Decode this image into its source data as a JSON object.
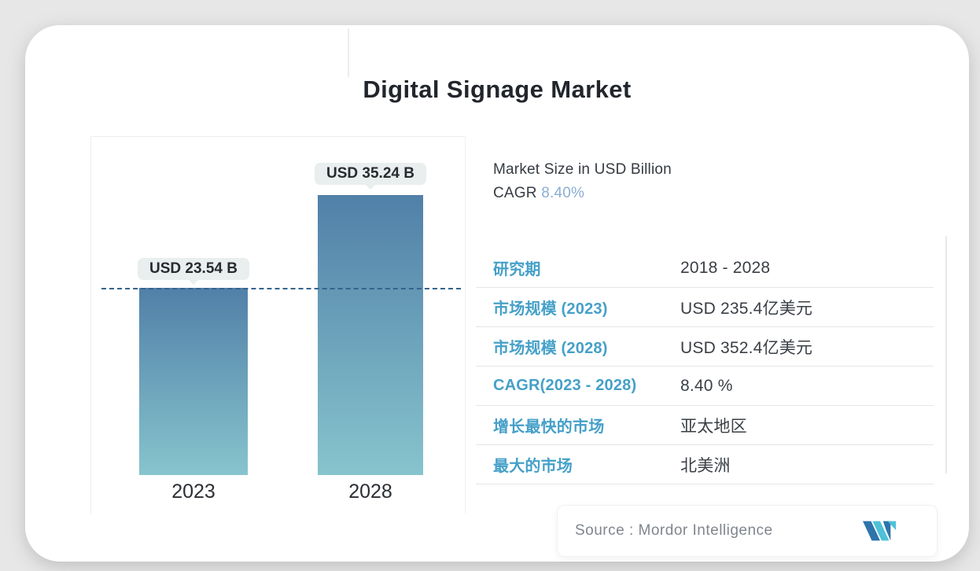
{
  "page_title": "Digital Signage Market",
  "chart_data": {
    "type": "bar",
    "title": "Digital Signage Market",
    "categories": [
      "2023",
      "2028"
    ],
    "values": [
      23.54,
      35.24
    ],
    "value_labels": [
      "USD 23.54 B",
      "USD 35.24 B"
    ],
    "unit": "USD Billion",
    "ylabel": "Market Size in USD Billion",
    "dashed_reference_value": 23.54,
    "legend_position": "none",
    "grid": "off",
    "bar_gradient_top": "#5180a8",
    "bar_gradient_bottom": "#87c4cd",
    "dashed_line_color": "#35638f"
  },
  "info": {
    "subtitle": "Market Size in USD Billion",
    "cagr_label": "CAGR",
    "cagr_value": "8.40%",
    "cagr_value_color": "#8aaed2"
  },
  "table": {
    "label_color": "#45a0c8",
    "rows": [
      {
        "label": "研究期",
        "value": "2018 - 2028"
      },
      {
        "label": "市场规模 (2023)",
        "value": "USD 235.4亿美元"
      },
      {
        "label": "市场规模 (2028)",
        "value": "USD 352.4亿美元"
      },
      {
        "label": "CAGR(2023 - 2028)",
        "value": "8.40 %"
      },
      {
        "label": "增长最快的市场",
        "value": "亚太地区"
      },
      {
        "label": "最大的市场",
        "value": "北美洲"
      }
    ]
  },
  "source": {
    "label": "Source :  Mordor Intelligence",
    "logo_name": "mordor-intelligence-logo",
    "logo_navy": "#2e74ab",
    "logo_teal": "#4ec1d8"
  }
}
